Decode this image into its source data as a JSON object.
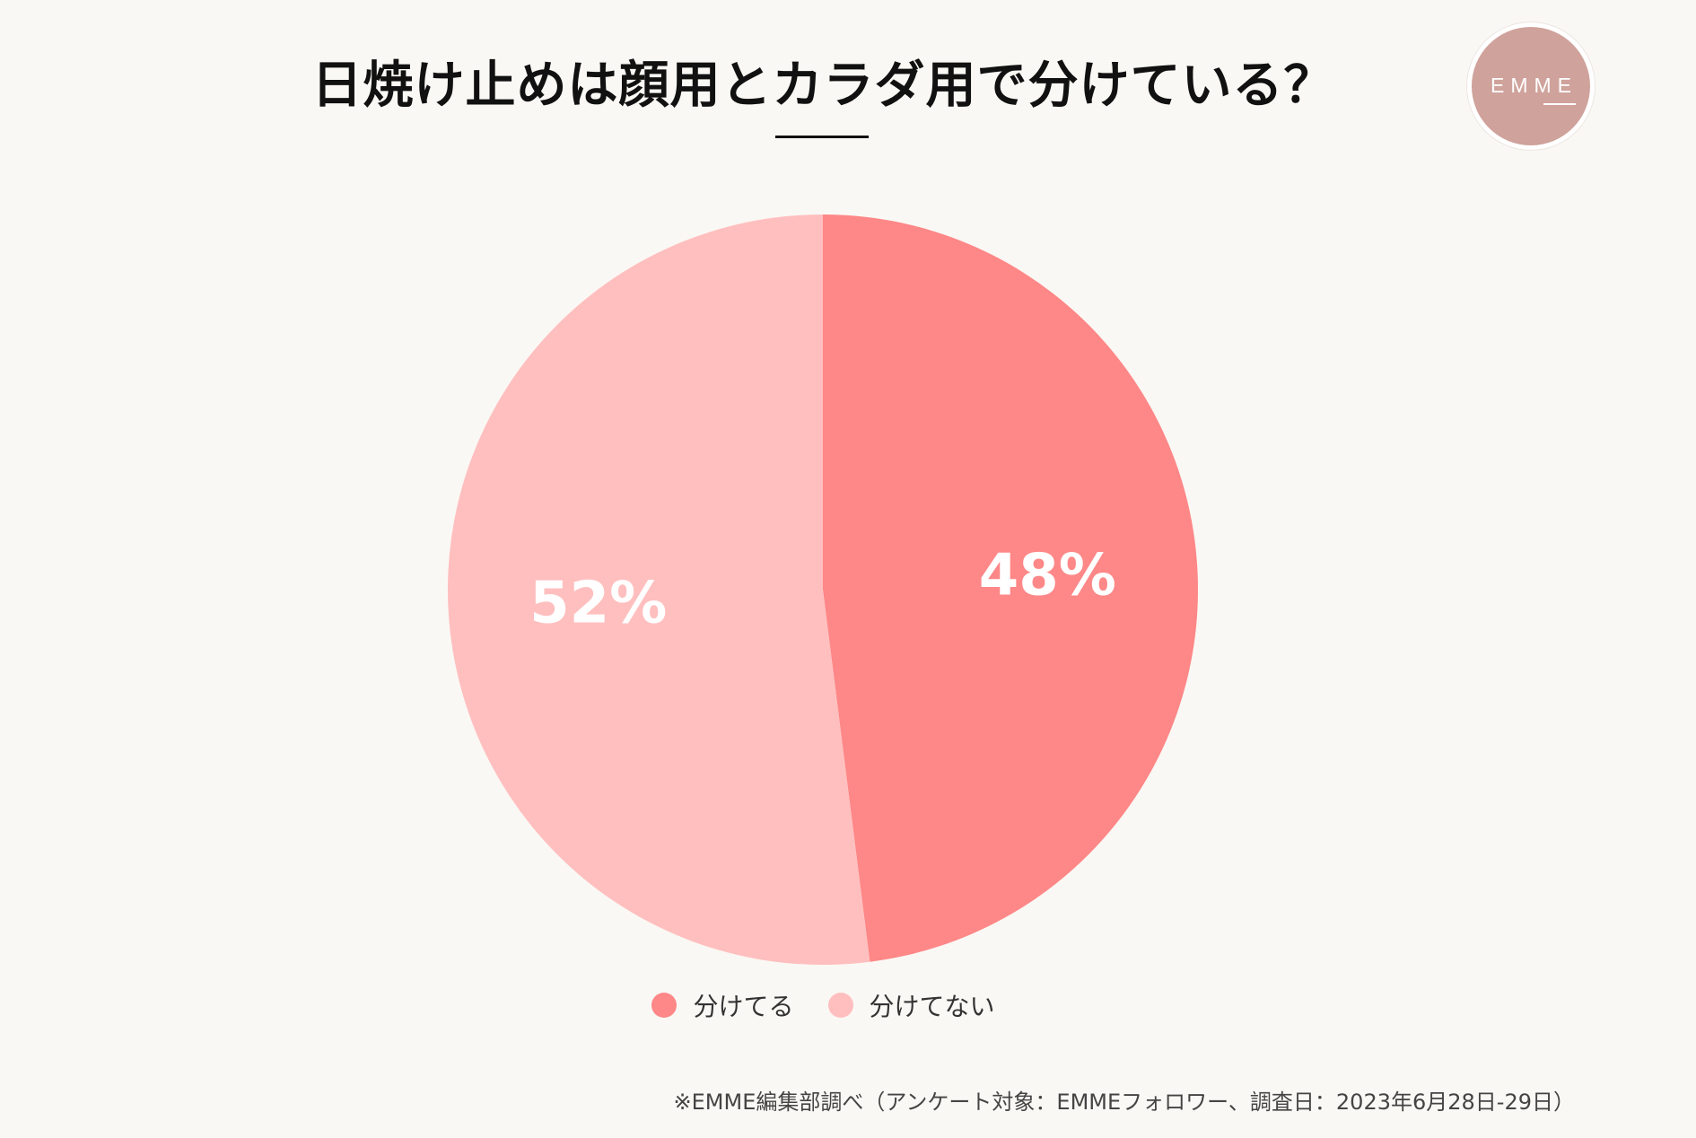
{
  "title": "日焼け止めは顔用とカラダ用で分けている？",
  "logo": {
    "text": "EMME"
  },
  "chart_data": {
    "type": "pie",
    "start_angle_deg": 0,
    "direction": "clockwise",
    "slices": [
      {
        "label": "分けてる",
        "value": 48,
        "display": "48%",
        "color": "#fe8787"
      },
      {
        "label": "分けてない",
        "value": 52,
        "display": "52%",
        "color": "#ffbfbf"
      }
    ],
    "legend_position": "bottom"
  },
  "footnote": "※EMME編集部調べ（アンケート対象：EMMEフォロワー、調査日：2023年6月28日-29日）"
}
